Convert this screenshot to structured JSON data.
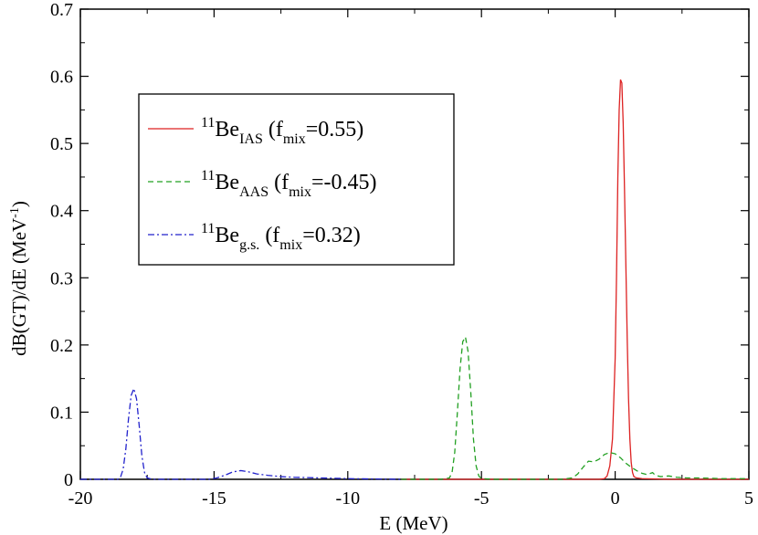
{
  "chart_data": {
    "type": "line",
    "xlabel": "E (MeV)",
    "ylabel": {
      "main": "dB(GT)/dE (MeV",
      "sup": "-1",
      "close": ")"
    },
    "xlim": [
      -20,
      5
    ],
    "ylim": [
      0,
      0.7
    ],
    "xticks": [
      -20,
      -15,
      -10,
      -5,
      0,
      5
    ],
    "yticks": [
      0,
      0.1,
      0.2,
      0.3,
      0.4,
      0.5,
      0.6,
      0.7
    ],
    "grid": false,
    "legend": {
      "placement": "upper-left"
    },
    "series": [
      {
        "id": "ias",
        "color": "#dd2222",
        "dash": "solid",
        "legend": {
          "sup": "11",
          "base": "Be",
          "sub": "IAS",
          "pre": " (f",
          "sub2": "mix",
          "post": "=0.55)"
        },
        "points": [
          [
            -8,
            0
          ],
          [
            -2,
            0
          ],
          [
            -0.6,
            0
          ],
          [
            -0.4,
            0.001
          ],
          [
            -0.3,
            0.005
          ],
          [
            -0.2,
            0.02
          ],
          [
            -0.1,
            0.06
          ],
          [
            0.0,
            0.18
          ],
          [
            0.05,
            0.3
          ],
          [
            0.1,
            0.45
          ],
          [
            0.15,
            0.55
          ],
          [
            0.2,
            0.595
          ],
          [
            0.25,
            0.59
          ],
          [
            0.3,
            0.53
          ],
          [
            0.35,
            0.43
          ],
          [
            0.4,
            0.32
          ],
          [
            0.45,
            0.21
          ],
          [
            0.5,
            0.12
          ],
          [
            0.55,
            0.06
          ],
          [
            0.6,
            0.025
          ],
          [
            0.65,
            0.01
          ],
          [
            0.7,
            0.004
          ],
          [
            0.8,
            0.002
          ],
          [
            1.0,
            0.001
          ],
          [
            2.0,
            0
          ],
          [
            5,
            0
          ]
        ]
      },
      {
        "id": "aas",
        "color": "#22a022",
        "dash": "dashed",
        "legend": {
          "sup": "11",
          "base": "Be",
          "sub": "AAS",
          "pre": " (f",
          "sub2": "mix",
          "post": "=-0.45)"
        },
        "points": [
          [
            -8,
            0
          ],
          [
            -6.5,
            0
          ],
          [
            -6.2,
            0.002
          ],
          [
            -6.1,
            0.01
          ],
          [
            -6.0,
            0.04
          ],
          [
            -5.9,
            0.1
          ],
          [
            -5.8,
            0.165
          ],
          [
            -5.7,
            0.205
          ],
          [
            -5.6,
            0.212
          ],
          [
            -5.5,
            0.19
          ],
          [
            -5.4,
            0.13
          ],
          [
            -5.3,
            0.06
          ],
          [
            -5.2,
            0.02
          ],
          [
            -5.1,
            0.005
          ],
          [
            -5.0,
            0.001
          ],
          [
            -4.5,
            0
          ],
          [
            -2.0,
            0
          ],
          [
            -1.6,
            0.002
          ],
          [
            -1.4,
            0.008
          ],
          [
            -1.2,
            0.018
          ],
          [
            -1.0,
            0.027
          ],
          [
            -0.8,
            0.026
          ],
          [
            -0.6,
            0.03
          ],
          [
            -0.4,
            0.037
          ],
          [
            -0.2,
            0.04
          ],
          [
            0.0,
            0.038
          ],
          [
            0.2,
            0.032
          ],
          [
            0.4,
            0.024
          ],
          [
            0.6,
            0.018
          ],
          [
            0.8,
            0.013
          ],
          [
            1.0,
            0.009
          ],
          [
            1.2,
            0.007
          ],
          [
            1.4,
            0.01
          ],
          [
            1.5,
            0.006
          ],
          [
            1.7,
            0.004
          ],
          [
            2.0,
            0.005
          ],
          [
            2.3,
            0.003
          ],
          [
            2.7,
            0.002
          ],
          [
            3.2,
            0.002
          ],
          [
            4.0,
            0.001
          ],
          [
            5,
            0.001
          ]
        ]
      },
      {
        "id": "gs",
        "color": "#2222cc",
        "dash": "dashdot",
        "legend": {
          "sup": "11",
          "base": "Be",
          "sub": "g.s.",
          "pre": " (f",
          "sub2": "mix",
          "post": "=0.32)"
        },
        "points": [
          [
            -20,
            0
          ],
          [
            -18.6,
            0
          ],
          [
            -18.5,
            0.003
          ],
          [
            -18.4,
            0.015
          ],
          [
            -18.3,
            0.045
          ],
          [
            -18.2,
            0.09
          ],
          [
            -18.1,
            0.125
          ],
          [
            -18.0,
            0.135
          ],
          [
            -17.9,
            0.12
          ],
          [
            -17.8,
            0.08
          ],
          [
            -17.7,
            0.035
          ],
          [
            -17.6,
            0.01
          ],
          [
            -17.5,
            0.002
          ],
          [
            -17.3,
            0
          ],
          [
            -15.2,
            0
          ],
          [
            -14.9,
            0.002
          ],
          [
            -14.6,
            0.006
          ],
          [
            -14.3,
            0.011
          ],
          [
            -14.0,
            0.013
          ],
          [
            -13.7,
            0.011
          ],
          [
            -13.4,
            0.008
          ],
          [
            -13.0,
            0.006
          ],
          [
            -12.5,
            0.004
          ],
          [
            -12.0,
            0.003
          ],
          [
            -11.0,
            0.002
          ],
          [
            -10.0,
            0.001
          ],
          [
            -9.0,
            0.0005
          ],
          [
            -8,
            0
          ]
        ]
      }
    ]
  }
}
